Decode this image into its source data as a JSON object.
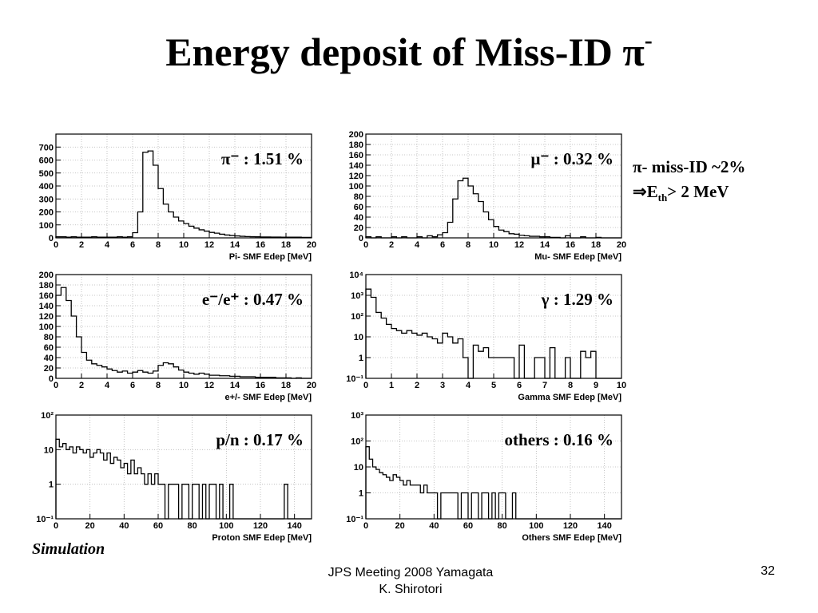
{
  "slide": {
    "title_main": "Energy deposit of Miss-ID π",
    "title_sup": "-",
    "simulation": "Simulation",
    "footer_line1": "JPS Meeting 2008 Yamagata",
    "footer_line2": "K. Shirotori",
    "page_number": "32"
  },
  "side_notes": {
    "line1": "π- miss-ID ~2%",
    "line2_prefix": "⇒E",
    "line2_sub": "th",
    "line2_suffix": "> 2 MeV"
  },
  "chart_data": [
    {
      "type": "histogram",
      "label": "π⁻ : 1.51 %",
      "xlabel": "Pi- SMF Edep [MeV]",
      "xlim": [
        0,
        20
      ],
      "ylim": [
        0,
        800
      ],
      "xticks": [
        0,
        2,
        4,
        6,
        8,
        10,
        12,
        14,
        16,
        18,
        20
      ],
      "yticks": [
        0,
        100,
        200,
        300,
        400,
        500,
        600,
        700
      ],
      "grid": true,
      "bin_width": 0.4,
      "values": [
        8,
        8,
        5,
        8,
        5,
        5,
        5,
        8,
        5,
        5,
        5,
        5,
        8,
        5,
        8,
        40,
        200,
        660,
        670,
        560,
        380,
        260,
        200,
        160,
        130,
        110,
        90,
        75,
        62,
        52,
        42,
        36,
        28,
        22,
        18,
        15,
        12,
        10,
        9,
        8,
        7,
        7,
        6,
        6,
        5,
        5,
        5,
        5,
        4,
        4
      ]
    },
    {
      "type": "histogram",
      "label": "μ⁻ : 0.32 %",
      "xlabel": "Mu- SMF Edep [MeV]",
      "xlim": [
        0,
        20
      ],
      "ylim": [
        0,
        200
      ],
      "xticks": [
        0,
        2,
        4,
        6,
        8,
        10,
        12,
        14,
        16,
        18,
        20
      ],
      "yticks": [
        0,
        20,
        40,
        60,
        80,
        100,
        120,
        140,
        160,
        180,
        200
      ],
      "grid": true,
      "bin_width": 0.4,
      "values": [
        2,
        0,
        2,
        0,
        0,
        2,
        0,
        2,
        0,
        0,
        2,
        0,
        4,
        2,
        6,
        10,
        30,
        75,
        110,
        115,
        100,
        85,
        70,
        50,
        35,
        22,
        15,
        12,
        8,
        7,
        5,
        4,
        3,
        3,
        2,
        2,
        1,
        1,
        0,
        4,
        0,
        0,
        2,
        0,
        0,
        1,
        0,
        0,
        0,
        0
      ]
    },
    {
      "type": "histogram",
      "label": "e⁻/e⁺ : 0.47 %",
      "xlabel": "e+/- SMF Edep [MeV]",
      "xlim": [
        0,
        20
      ],
      "ylim": [
        0,
        200
      ],
      "xticks": [
        0,
        2,
        4,
        6,
        8,
        10,
        12,
        14,
        16,
        18,
        20
      ],
      "yticks": [
        0,
        20,
        40,
        60,
        80,
        100,
        120,
        140,
        160,
        180,
        200
      ],
      "grid": true,
      "bin_width": 0.4,
      "values": [
        160,
        175,
        150,
        120,
        80,
        50,
        35,
        28,
        25,
        22,
        18,
        15,
        12,
        14,
        10,
        12,
        15,
        12,
        10,
        14,
        25,
        30,
        28,
        22,
        16,
        12,
        10,
        8,
        10,
        8,
        6,
        6,
        5,
        5,
        4,
        4,
        3,
        3,
        3,
        2,
        2,
        2,
        2,
        1,
        1,
        1,
        0,
        1,
        0,
        0
      ]
    },
    {
      "type": "histogram",
      "label": "γ : 1.29 %",
      "xlabel": "Gamma SMF Edep [MeV]",
      "xlim": [
        0,
        10
      ],
      "ylim": [
        0.1,
        10000
      ],
      "yscale": "log",
      "xticks": [
        0,
        1,
        2,
        3,
        4,
        5,
        6,
        7,
        8,
        9,
        10
      ],
      "yticks": [
        0.1,
        1,
        10,
        100,
        1000,
        10000
      ],
      "yticklabels": [
        "10⁻¹",
        "1",
        "10",
        "10²",
        "10³",
        "10⁴"
      ],
      "grid": true,
      "bin_width": 0.2,
      "values": [
        2000,
        800,
        150,
        80,
        40,
        25,
        20,
        15,
        20,
        15,
        12,
        15,
        10,
        8,
        5,
        15,
        10,
        5,
        8,
        1,
        0,
        4,
        2,
        3,
        1,
        1,
        1,
        1,
        1,
        0,
        4,
        0,
        0,
        1,
        1,
        0,
        3,
        0,
        0,
        1,
        0,
        0,
        2,
        1,
        2,
        0,
        0,
        0,
        0,
        0
      ]
    },
    {
      "type": "histogram",
      "label": "p/n : 0.17 %",
      "xlabel": "Proton SMF Edep [MeV]",
      "xlim": [
        0,
        150
      ],
      "ylim": [
        0.1,
        100
      ],
      "yscale": "log",
      "xticks": [
        0,
        20,
        40,
        60,
        80,
        100,
        120,
        140
      ],
      "yticks": [
        0.1,
        1,
        10,
        100
      ],
      "yticklabels": [
        "10⁻¹",
        "1",
        "10",
        "10²"
      ],
      "grid": true,
      "bin_width": 2,
      "values": [
        20,
        12,
        15,
        10,
        12,
        8,
        12,
        10,
        8,
        10,
        6,
        8,
        10,
        8,
        5,
        8,
        4,
        6,
        5,
        3,
        4,
        2,
        5,
        2,
        3,
        2,
        1,
        2,
        1,
        2,
        1,
        1,
        0,
        1,
        1,
        1,
        0,
        1,
        1,
        0,
        1,
        1,
        0,
        1,
        0,
        1,
        1,
        0,
        1,
        0,
        0,
        1,
        0,
        0,
        0,
        0,
        0,
        0,
        0,
        0,
        0,
        0,
        0,
        0,
        0,
        0,
        0,
        1,
        0,
        0,
        0,
        0,
        0,
        0,
        0
      ]
    },
    {
      "type": "histogram",
      "label": "others : 0.16 %",
      "xlabel": "Others SMF Edep [MeV]",
      "xlim": [
        0,
        150
      ],
      "ylim": [
        0.1,
        1000
      ],
      "yscale": "log",
      "xticks": [
        0,
        20,
        40,
        60,
        80,
        100,
        120,
        140
      ],
      "yticks": [
        0.1,
        1,
        10,
        100,
        1000
      ],
      "yticklabels": [
        "10⁻¹",
        "1",
        "10",
        "10²",
        "10³"
      ],
      "grid": true,
      "bin_width": 2,
      "values": [
        60,
        20,
        10,
        8,
        6,
        5,
        4,
        3,
        5,
        4,
        3,
        2,
        3,
        2,
        2,
        2,
        1,
        2,
        1,
        1,
        1,
        0,
        1,
        1,
        1,
        1,
        1,
        0,
        1,
        1,
        0,
        1,
        1,
        0,
        1,
        1,
        0,
        1,
        0,
        1,
        1,
        0,
        0,
        1,
        0,
        0,
        0,
        0,
        0,
        0,
        0,
        0,
        0,
        0,
        0,
        0,
        0,
        0,
        0,
        0,
        0,
        0,
        0,
        0,
        0,
        0,
        0,
        0,
        0,
        0,
        0,
        0,
        0,
        0,
        0
      ]
    }
  ]
}
